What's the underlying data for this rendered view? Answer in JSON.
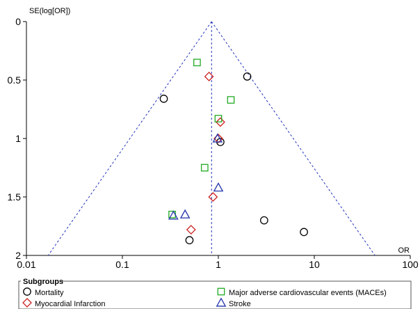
{
  "chart_data": {
    "type": "scatter",
    "title": "",
    "xlabel": "OR",
    "ylabel": "SE(log[OR])",
    "x_scale": "log",
    "xlim": [
      0.01,
      100
    ],
    "ylim": [
      2,
      0
    ],
    "x_ticks": [
      "0.01",
      "0.1",
      "1",
      "10",
      "100"
    ],
    "y_ticks": [
      "0",
      "0.5",
      "1",
      "1.5",
      "2"
    ],
    "pooled_estimate": 0.85,
    "funnel_limits": "dashed-blue",
    "legend": {
      "title": "Subgroups",
      "placement": "bottom"
    },
    "series": [
      {
        "name": "Mortality",
        "marker": "circle",
        "color": "#000000",
        "points": [
          {
            "x": 0.27,
            "y": 0.66
          },
          {
            "x": 2.0,
            "y": 0.47
          },
          {
            "x": 1.05,
            "y": 1.03
          },
          {
            "x": 0.5,
            "y": 1.87
          },
          {
            "x": 3.0,
            "y": 1.7
          },
          {
            "x": 7.8,
            "y": 1.8
          }
        ]
      },
      {
        "name": "Myocardial Infarction",
        "marker": "diamond",
        "color": "#cc2222",
        "points": [
          {
            "x": 0.8,
            "y": 0.47
          },
          {
            "x": 1.05,
            "y": 0.86
          },
          {
            "x": 1.0,
            "y": 1.0
          },
          {
            "x": 0.88,
            "y": 1.5
          },
          {
            "x": 0.52,
            "y": 1.78
          }
        ]
      },
      {
        "name": "Major adverse cardiovascular events (MACEs)",
        "marker": "square",
        "color": "#22aa22",
        "points": [
          {
            "x": 0.6,
            "y": 0.35
          },
          {
            "x": 1.35,
            "y": 0.67
          },
          {
            "x": 1.0,
            "y": 0.83
          },
          {
            "x": 0.72,
            "y": 1.25
          },
          {
            "x": 0.33,
            "y": 1.65
          }
        ]
      },
      {
        "name": "Stroke",
        "marker": "triangle",
        "color": "#2233aa",
        "points": [
          {
            "x": 0.98,
            "y": 1.0
          },
          {
            "x": 1.0,
            "y": 1.42
          },
          {
            "x": 0.45,
            "y": 1.65
          },
          {
            "x": 0.34,
            "y": 1.66
          }
        ]
      }
    ]
  }
}
